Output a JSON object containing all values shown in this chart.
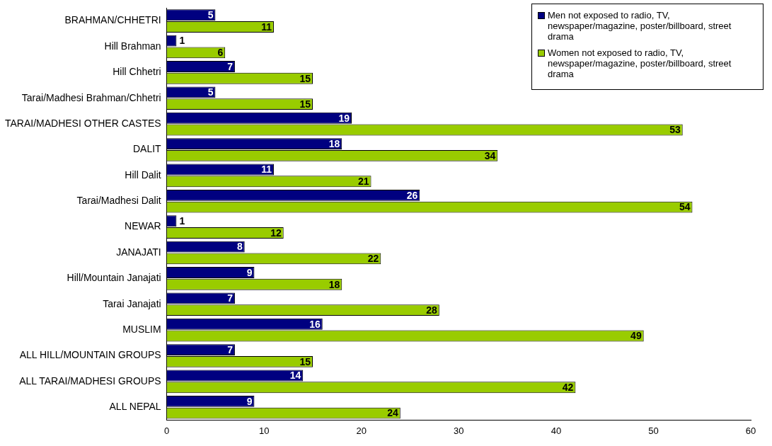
{
  "chart_data": {
    "type": "bar",
    "orientation": "horizontal",
    "categories": [
      "BRAHMAN/CHHETRI",
      "Hill Brahman",
      "Hill Chhetri",
      "Tarai/Madhesi Brahman/Chhetri",
      "TARAI/MADHESI OTHER CASTES",
      "DALIT",
      "Hill Dalit",
      "Tarai/Madhesi Dalit",
      "NEWAR",
      "JANAJATI",
      "Hill/Mountain Janajati",
      "Tarai Janajati",
      "MUSLIM",
      "ALL HILL/MOUNTAIN GROUPS",
      "ALL TARAI/MADHESI GROUPS",
      "ALL NEPAL"
    ],
    "series": [
      {
        "name": "Men not exposed to radio, TV, newspaper/magazine, poster/billboard, street drama",
        "color": "#000080",
        "values": [
          5,
          1,
          7,
          5,
          19,
          18,
          11,
          26,
          1,
          8,
          9,
          7,
          16,
          7,
          14,
          9
        ]
      },
      {
        "name": "Women not exposed to radio, TV, newspaper/magazine, poster/billboard, street drama",
        "color": "#99cc00",
        "values": [
          11,
          6,
          15,
          15,
          53,
          34,
          21,
          54,
          12,
          22,
          18,
          28,
          49,
          15,
          42,
          24
        ]
      }
    ],
    "xlim": [
      0,
      60
    ],
    "xticks": [
      0,
      10,
      20,
      30,
      40,
      50,
      60
    ],
    "grid": false,
    "legend": "top right",
    "data_labels": true
  }
}
